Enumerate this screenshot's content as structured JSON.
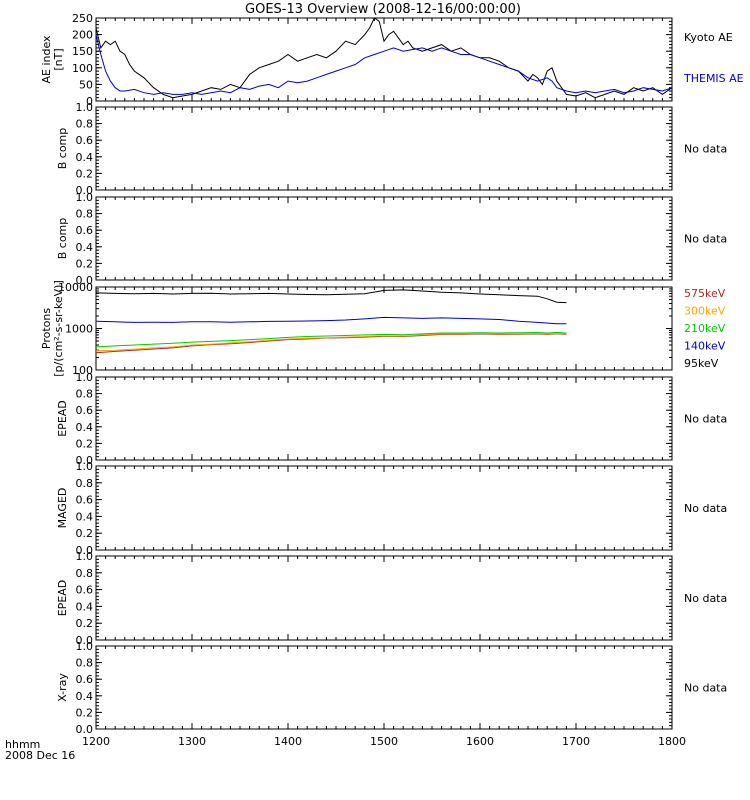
{
  "page": {
    "title": "GOES-13 Overview (2008-12-16/00:00:00)"
  },
  "footer": {
    "label_line1": "hhmm",
    "label_line2": "2008 Dec 16"
  },
  "x_axis": {
    "ticks": [
      1200,
      1300,
      1400,
      1500,
      1600,
      1700,
      1800
    ]
  },
  "colors": {
    "black": "#000000",
    "blue": "#0000cc",
    "e575": "#a52a2a",
    "e300": "#ffa500",
    "e210": "#00cc00",
    "e140": "#0000cc",
    "e95": "#000000"
  },
  "chart_data": [
    {
      "id": "ae",
      "type": "line",
      "ylabel": "AE index\n[nT]",
      "ylim": [
        0,
        250
      ],
      "yticks": [
        "0",
        "50",
        "100",
        "150",
        "200",
        "250"
      ],
      "series": [
        {
          "name": "Kyoto AE",
          "color": "#000000",
          "x": [
            1200,
            1205,
            1210,
            1215,
            1220,
            1225,
            1230,
            1235,
            1240,
            1250,
            1260,
            1270,
            1280,
            1290,
            1300,
            1310,
            1320,
            1330,
            1340,
            1350,
            1360,
            1370,
            1380,
            1390,
            1400,
            1410,
            1420,
            1430,
            1440,
            1450,
            1460,
            1470,
            1480,
            1485,
            1490,
            1495,
            1500,
            1505,
            1510,
            1515,
            1520,
            1525,
            1530,
            1540,
            1550,
            1560,
            1570,
            1580,
            1590,
            1600,
            1610,
            1620,
            1630,
            1640,
            1650,
            1655,
            1660,
            1665,
            1670,
            1675,
            1680,
            1685,
            1690,
            1700,
            1710,
            1720,
            1730,
            1740,
            1750,
            1760,
            1770,
            1780,
            1790,
            1800
          ],
          "y": [
            220,
            160,
            180,
            170,
            180,
            150,
            140,
            110,
            90,
            70,
            40,
            20,
            10,
            15,
            20,
            30,
            40,
            35,
            50,
            40,
            80,
            100,
            110,
            120,
            140,
            120,
            130,
            140,
            130,
            150,
            180,
            170,
            200,
            220,
            250,
            240,
            180,
            200,
            210,
            190,
            170,
            180,
            160,
            150,
            160,
            170,
            150,
            160,
            140,
            130,
            130,
            120,
            100,
            90,
            60,
            80,
            70,
            50,
            90,
            100,
            60,
            40,
            20,
            15,
            25,
            10,
            20,
            30,
            20,
            40,
            30,
            40,
            20,
            40
          ]
        },
        {
          "name": "THEMIS AE",
          "color": "#0000cc",
          "x": [
            1200,
            1205,
            1210,
            1215,
            1220,
            1225,
            1230,
            1240,
            1250,
            1260,
            1270,
            1280,
            1290,
            1300,
            1310,
            1320,
            1330,
            1340,
            1350,
            1360,
            1370,
            1380,
            1390,
            1400,
            1410,
            1420,
            1430,
            1440,
            1450,
            1460,
            1470,
            1480,
            1490,
            1500,
            1510,
            1520,
            1530,
            1540,
            1550,
            1560,
            1570,
            1580,
            1590,
            1600,
            1610,
            1620,
            1630,
            1640,
            1650,
            1660,
            1670,
            1675,
            1680,
            1690,
            1700,
            1710,
            1720,
            1730,
            1740,
            1750,
            1760,
            1770,
            1780,
            1790,
            1800
          ],
          "y": [
            200,
            140,
            90,
            60,
            40,
            30,
            30,
            35,
            25,
            20,
            25,
            20,
            20,
            25,
            20,
            25,
            30,
            25,
            40,
            35,
            45,
            50,
            40,
            60,
            55,
            60,
            70,
            80,
            90,
            100,
            110,
            130,
            140,
            150,
            160,
            150,
            155,
            160,
            150,
            160,
            150,
            140,
            140,
            130,
            120,
            110,
            100,
            90,
            70,
            60,
            70,
            60,
            40,
            30,
            25,
            30,
            25,
            30,
            35,
            25,
            30,
            40,
            35,
            30,
            40
          ]
        }
      ]
    },
    {
      "id": "bcomp1",
      "type": "line",
      "ylabel": "B comp",
      "ylim": [
        0,
        1
      ],
      "yticks": [
        "0.0",
        "0.2",
        "0.4",
        "0.6",
        "0.8",
        "1.0"
      ],
      "nodata": "No data"
    },
    {
      "id": "bcomp2",
      "type": "line",
      "ylabel": "B comp",
      "ylim": [
        0,
        1
      ],
      "yticks": [
        "0.0",
        "0.2",
        "0.4",
        "0.6",
        "0.8",
        "1.0"
      ],
      "nodata": "No data"
    },
    {
      "id": "protons",
      "type": "line",
      "ylabel": "Protons\n[p/(cm²-s-sr-keV)]",
      "scale": "log",
      "ylim": [
        100,
        10000
      ],
      "yticks": [
        "100",
        "1000",
        "10000"
      ],
      "series": [
        {
          "name": "575keV",
          "color": "#a52a2a",
          "x": [
            1200,
            1220,
            1240,
            1260,
            1280,
            1300,
            1320,
            1340,
            1360,
            1380,
            1400,
            1420,
            1440,
            1460,
            1480,
            1500,
            1520,
            1540,
            1560,
            1580,
            1600,
            1620,
            1640,
            1660,
            1670,
            1680,
            1690
          ],
          "y": [
            260,
            280,
            300,
            320,
            340,
            380,
            410,
            430,
            460,
            500,
            540,
            560,
            590,
            600,
            620,
            650,
            640,
            680,
            720,
            720,
            740,
            720,
            730,
            740,
            720,
            750,
            720
          ]
        },
        {
          "name": "300keV",
          "color": "#ffa500",
          "x": [
            1200,
            1220,
            1240,
            1260,
            1280,
            1300,
            1320,
            1340,
            1360,
            1380,
            1400,
            1420,
            1440,
            1460,
            1480,
            1500,
            1520,
            1540,
            1560,
            1580,
            1600,
            1620,
            1640,
            1660,
            1670,
            1680,
            1690
          ],
          "y": [
            290,
            300,
            320,
            340,
            360,
            400,
            420,
            450,
            480,
            520,
            560,
            580,
            600,
            620,
            640,
            670,
            660,
            700,
            740,
            740,
            760,
            740,
            750,
            760,
            740,
            760,
            740
          ]
        },
        {
          "name": "210keV",
          "color": "#00cc00",
          "x": [
            1200,
            1220,
            1240,
            1260,
            1280,
            1300,
            1320,
            1340,
            1360,
            1380,
            1400,
            1420,
            1440,
            1460,
            1480,
            1500,
            1520,
            1540,
            1560,
            1580,
            1600,
            1620,
            1640,
            1660,
            1670,
            1680,
            1690
          ],
          "y": [
            360,
            380,
            400,
            420,
            440,
            470,
            490,
            510,
            540,
            570,
            610,
            640,
            660,
            680,
            700,
            720,
            710,
            740,
            780,
            780,
            790,
            780,
            790,
            800,
            780,
            800,
            780
          ]
        },
        {
          "name": "140keV",
          "color": "#0000cc",
          "x": [
            1200,
            1220,
            1240,
            1260,
            1280,
            1300,
            1320,
            1340,
            1360,
            1380,
            1400,
            1420,
            1440,
            1460,
            1480,
            1500,
            1520,
            1540,
            1560,
            1580,
            1600,
            1620,
            1640,
            1660,
            1680,
            1690
          ],
          "y": [
            1500,
            1450,
            1400,
            1420,
            1400,
            1450,
            1450,
            1420,
            1450,
            1480,
            1500,
            1520,
            1550,
            1600,
            1700,
            1850,
            1800,
            1750,
            1800,
            1750,
            1700,
            1650,
            1500,
            1400,
            1300,
            1300
          ]
        },
        {
          "name": "95keV",
          "color": "#000000",
          "x": [
            1200,
            1220,
            1240,
            1260,
            1280,
            1300,
            1320,
            1340,
            1360,
            1380,
            1400,
            1420,
            1440,
            1460,
            1480,
            1500,
            1520,
            1540,
            1560,
            1580,
            1600,
            1620,
            1640,
            1660,
            1670,
            1680,
            1690
          ],
          "y": [
            7200,
            7000,
            6900,
            7000,
            6800,
            7000,
            7100,
            6800,
            6900,
            7000,
            6800,
            6600,
            6500,
            6700,
            6900,
            8300,
            8500,
            8000,
            7500,
            7200,
            6800,
            6500,
            6200,
            6000,
            5200,
            4300,
            4200
          ]
        }
      ]
    },
    {
      "id": "epead1",
      "type": "line",
      "ylabel": "EPEAD",
      "ylim": [
        0,
        1
      ],
      "yticks": [
        "0.0",
        "0.2",
        "0.4",
        "0.6",
        "0.8",
        "1.0"
      ],
      "nodata": "No data"
    },
    {
      "id": "maged",
      "type": "line",
      "ylabel": "MAGED",
      "ylim": [
        0,
        1
      ],
      "yticks": [
        "0.0",
        "0.2",
        "0.4",
        "0.6",
        "0.8",
        "1.0"
      ],
      "nodata": "No data"
    },
    {
      "id": "epead2",
      "type": "line",
      "ylabel": "EPEAD",
      "ylim": [
        0,
        1
      ],
      "yticks": [
        "0.0",
        "0.2",
        "0.4",
        "0.6",
        "0.8",
        "1.0"
      ],
      "nodata": "No data"
    },
    {
      "id": "xray",
      "type": "line",
      "ylabel": "X-ray",
      "ylim": [
        0,
        1
      ],
      "yticks": [
        "0.0",
        "0.2",
        "0.4",
        "0.6",
        "0.8",
        "1.0"
      ],
      "nodata": "No data"
    }
  ]
}
